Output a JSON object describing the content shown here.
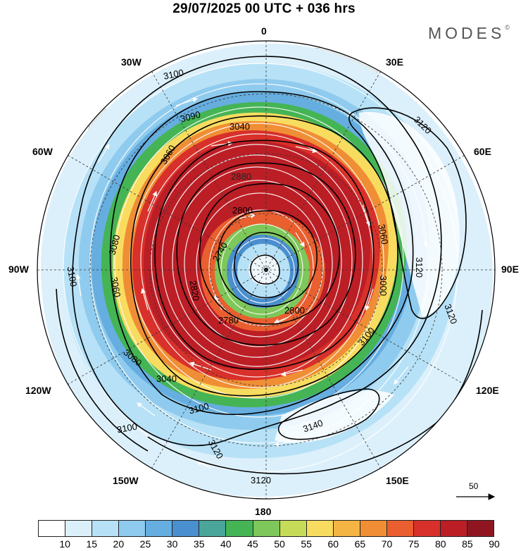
{
  "title": "29/07/2025  00 UTC  + 036 hrs",
  "brand": {
    "name": "MODES",
    "mark": "©"
  },
  "meridians": {
    "top": "0",
    "bottom": "180",
    "left": "90W",
    "right": "90E",
    "nw30": "30W",
    "ne30": "30E",
    "nw60": "60W",
    "ne60": "60E",
    "sw120": "120W",
    "se120": "120E",
    "sw150": "150W",
    "se150": "150E"
  },
  "contours": {
    "c3100a": "3100",
    "c3100b": "3100",
    "c3100c": "3100",
    "c3100d": "3100",
    "c3100e": "3100",
    "c3090": "3090",
    "c3080a": "3080",
    "c3080b": "3080",
    "c3060a": "3060",
    "c3060b": "3060",
    "c3060c": "3060",
    "c3040a": "3040",
    "c3040b": "3040",
    "c3120a": "3120",
    "c3120b": "3120",
    "c3120c": "3120",
    "c3120d": "3120",
    "c3120e": "3120",
    "c3140": "3140",
    "c2880": "2880",
    "c2800a": "2800",
    "c2800b": "2800",
    "c2740": "2740",
    "c2780": "2780",
    "c2820": "2820",
    "c3000": "3000"
  },
  "reference_vector": "50",
  "legend": {
    "ticks": [
      "10",
      "15",
      "20",
      "25",
      "30",
      "35",
      "40",
      "45",
      "50",
      "55",
      "60",
      "65",
      "70",
      "75",
      "80",
      "85",
      "90"
    ],
    "colors": [
      "#ffffff",
      "#dcf0fb",
      "#b7e1f6",
      "#8fcbee",
      "#66aee0",
      "#4a8fcf",
      "#4aa59a",
      "#45b455",
      "#7ec75a",
      "#c6dc58",
      "#f8dc60",
      "#f5b545",
      "#f08e35",
      "#ea5f2f",
      "#d8302a",
      "#bc1e26",
      "#8f1620"
    ]
  }
}
